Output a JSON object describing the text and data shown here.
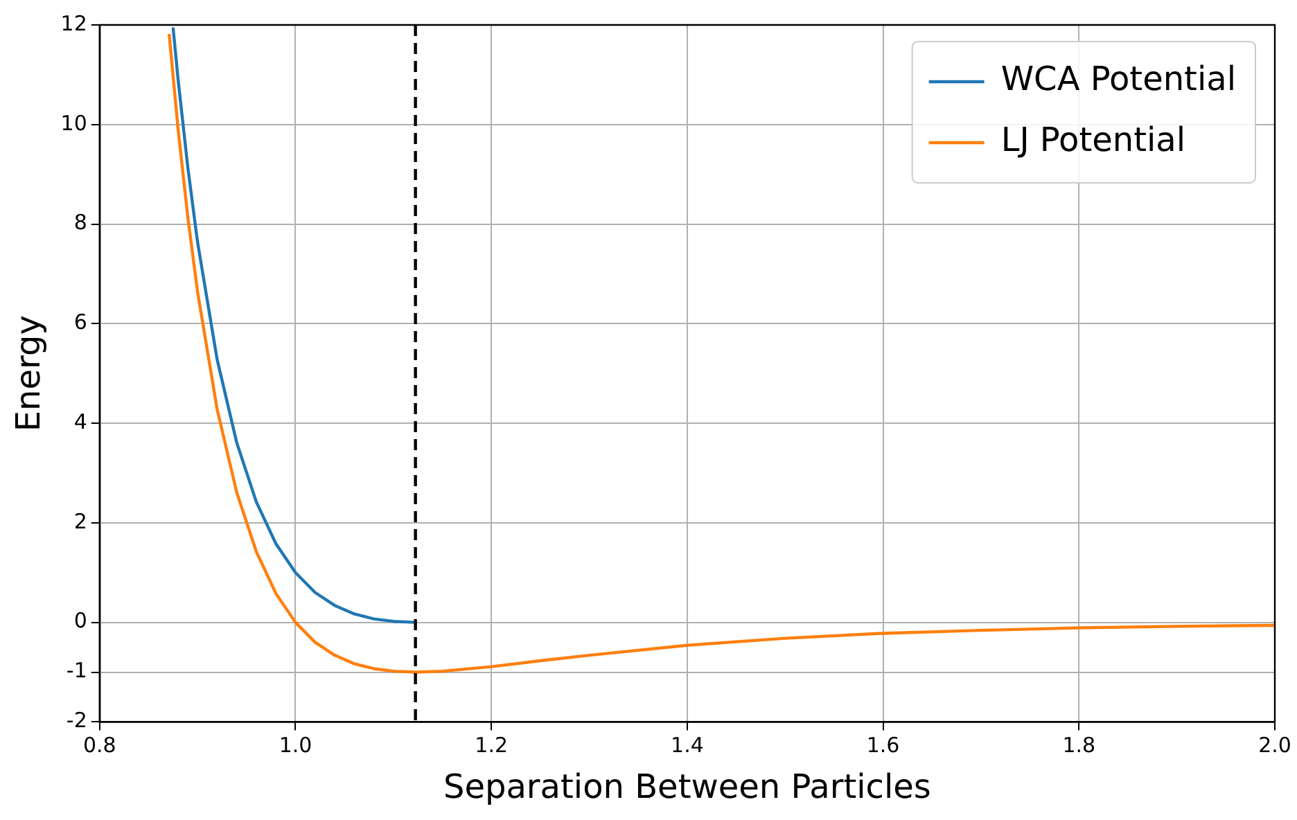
{
  "chart_data": {
    "type": "line",
    "xlabel": "Separation Between Particles",
    "ylabel": "Energy",
    "xlim": [
      0.8,
      2.0
    ],
    "xticks": [
      0.8,
      {
        "value": 1.0,
        "label": "1.0"
      },
      1.2,
      1.4,
      1.6,
      1.8,
      {
        "value": 2.0,
        "label": "2.0"
      }
    ],
    "ylim": [
      -2,
      12
    ],
    "yticks": [
      -2,
      -1,
      0,
      2,
      4,
      6,
      8,
      10,
      12
    ],
    "grid": true,
    "legend": "top right",
    "marker": "none",
    "line_style": "solid",
    "series": [
      {
        "name": "WCA Potential",
        "color": "#1f77b4",
        "x": [
          0.875,
          0.88,
          0.89,
          0.9,
          0.92,
          0.94,
          0.96,
          0.98,
          1.0,
          1.02,
          1.04,
          1.06,
          1.08,
          1.1,
          1.1225
        ],
        "values": [
          11.95,
          10.93,
          9.15,
          7.64,
          5.28,
          3.61,
          2.42,
          1.58,
          1.0,
          0.6,
          0.34,
          0.17,
          0.07,
          0.02,
          0.0
        ]
      },
      {
        "name": "LJ Potential",
        "color": "#ff7f0e",
        "x": [
          0.871,
          0.88,
          0.89,
          0.9,
          0.92,
          0.94,
          0.96,
          0.98,
          1.0,
          1.02,
          1.04,
          1.06,
          1.08,
          1.1,
          1.1225,
          1.15,
          1.2,
          1.25,
          1.3,
          1.4,
          1.5,
          1.6,
          1.7,
          1.8,
          1.9,
          2.0
        ],
        "values": [
          11.82,
          9.93,
          8.15,
          6.64,
          4.28,
          2.61,
          1.42,
          0.58,
          0.0,
          -0.4,
          -0.66,
          -0.83,
          -0.93,
          -0.98,
          -1.0,
          -0.98,
          -0.89,
          -0.77,
          -0.66,
          -0.46,
          -0.32,
          -0.22,
          -0.16,
          -0.11,
          -0.08,
          -0.06
        ]
      }
    ],
    "ref_lines": [
      {
        "axis": "x",
        "value": 1.1225,
        "color": "#000000",
        "line_style": "dashed"
      }
    ]
  }
}
